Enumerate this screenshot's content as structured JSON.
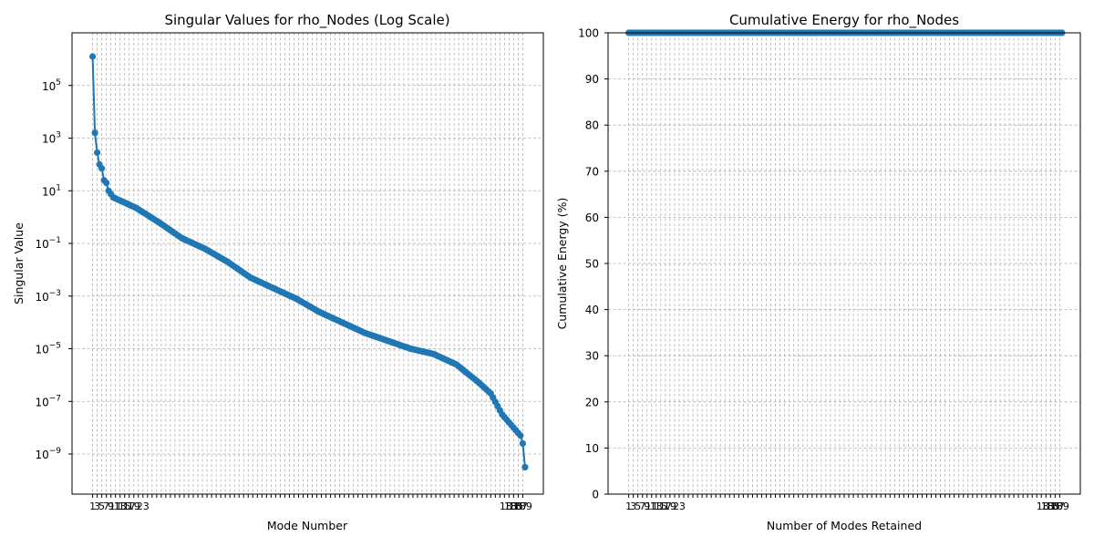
{
  "chart_data": [
    {
      "type": "line",
      "title": "Singular Values for rho_Nodes (Log Scale)",
      "xlabel": "Mode Number",
      "ylabel": "Singular Value",
      "yscale": "log",
      "ylim": [
        3e-11,
        10000000.0
      ],
      "yticks": [
        {
          "value": 100000.0,
          "base": "10",
          "exp": "5"
        },
        {
          "value": 1000.0,
          "base": "10",
          "exp": "3"
        },
        {
          "value": 10.0,
          "base": "10",
          "exp": "1"
        },
        {
          "value": 0.1,
          "base": "10",
          "exp": "−1"
        },
        {
          "value": 0.001,
          "base": "10",
          "exp": "−3"
        },
        {
          "value": 1e-05,
          "base": "10",
          "exp": "−5"
        },
        {
          "value": 1e-07,
          "base": "10",
          "exp": "−7"
        },
        {
          "value": 1e-09,
          "base": "10",
          "exp": "−9"
        }
      ],
      "xlim": [
        -8,
        198
      ],
      "grid": true,
      "marker": "circle",
      "color": "#1f77b4",
      "x_first": 1,
      "x_last": 190,
      "log10_anchors": [
        [
          1,
          6.1
        ],
        [
          2,
          3.2
        ],
        [
          3,
          2.45
        ],
        [
          4,
          2.0
        ],
        [
          5,
          1.85
        ],
        [
          6,
          1.4
        ],
        [
          7,
          1.3
        ],
        [
          8,
          1.0
        ],
        [
          10,
          0.75
        ],
        [
          20,
          0.35
        ],
        [
          30,
          -0.2
        ],
        [
          40,
          -0.8
        ],
        [
          50,
          -1.2
        ],
        [
          60,
          -1.7
        ],
        [
          70,
          -2.3
        ],
        [
          80,
          -2.7
        ],
        [
          90,
          -3.1
        ],
        [
          100,
          -3.6
        ],
        [
          110,
          -4.0
        ],
        [
          120,
          -4.4
        ],
        [
          130,
          -4.7
        ],
        [
          140,
          -5.0
        ],
        [
          150,
          -5.2
        ],
        [
          160,
          -5.6
        ],
        [
          170,
          -6.3
        ],
        [
          175,
          -6.7
        ],
        [
          180,
          -7.5
        ],
        [
          185,
          -8.0
        ],
        [
          188,
          -8.3
        ],
        [
          189,
          -8.6
        ],
        [
          190,
          -9.5
        ]
      ]
    },
    {
      "type": "line",
      "title": "Cumulative Energy for rho_Nodes",
      "xlabel": "Number of Modes Retained",
      "ylabel": "Cumulative Energy (%)",
      "ylim": [
        0,
        100
      ],
      "yticks": [
        0,
        10,
        20,
        30,
        40,
        50,
        60,
        70,
        80,
        90,
        100
      ],
      "xlim": [
        -8,
        198
      ],
      "grid": true,
      "marker": "circle",
      "color": "#1f77b4",
      "x_first": 1,
      "x_last": 190,
      "y_constant": 100
    }
  ],
  "x_tick_labels_visible": [
    "1",
    "3",
    "5",
    "7",
    "9",
    "11",
    "13",
    "15",
    "17",
    "19",
    "23",
    "183",
    "185",
    "187",
    "189"
  ]
}
